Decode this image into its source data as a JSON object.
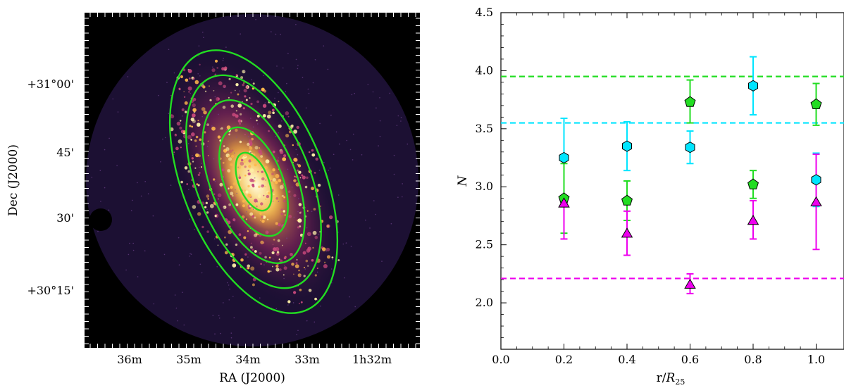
{
  "left_panel": {
    "xlabel": "RA (J2000)",
    "ylabel": "Dec (J2000)",
    "x_ticks": [
      "36m",
      "35m",
      "34m",
      "33m",
      "1h32m"
    ],
    "y_ticks": [
      "+31°00'",
      "45'",
      "30'",
      "+30°15'"
    ],
    "colors": {
      "background": "#000000",
      "disk": "#1c1033",
      "glow": "#ffe08a",
      "ellipse": "#22dd22"
    },
    "ellipse_count": 5
  },
  "chart_data": {
    "type": "scatter",
    "title": "",
    "xlabel": "r/R25",
    "ylabel": "N",
    "xlim": [
      0.0,
      1.05
    ],
    "ylim": [
      1.6,
      4.5
    ],
    "x_ticks": [
      "0.0",
      "0.2",
      "0.4",
      "0.6",
      "0.8",
      "1.0"
    ],
    "y_ticks": [
      "2.0",
      "2.5",
      "3.0",
      "3.5",
      "4.0",
      "4.5"
    ],
    "grid": false,
    "series": [
      {
        "marker": "hexagon",
        "color": "#00e5ff",
        "points": [
          {
            "x": 0.2,
            "y": 3.25,
            "lo": 2.9,
            "hi": 3.59
          },
          {
            "x": 0.4,
            "y": 3.35,
            "lo": 3.14,
            "hi": 3.56
          },
          {
            "x": 0.6,
            "y": 3.34,
            "lo": 3.2,
            "hi": 3.48
          },
          {
            "x": 0.8,
            "y": 3.87,
            "lo": 3.62,
            "hi": 4.12
          },
          {
            "x": 1.0,
            "y": 3.06,
            "lo": 2.83,
            "hi": 3.29
          }
        ],
        "reference_line": 3.55
      },
      {
        "marker": "pentagon",
        "color": "#22dd22",
        "points": [
          {
            "x": 0.2,
            "y": 2.9,
            "lo": 2.6,
            "hi": 3.2
          },
          {
            "x": 0.4,
            "y": 2.88,
            "lo": 2.71,
            "hi": 3.05
          },
          {
            "x": 0.6,
            "y": 3.73,
            "lo": 3.55,
            "hi": 3.92
          },
          {
            "x": 0.8,
            "y": 3.02,
            "lo": 2.9,
            "hi": 3.14
          },
          {
            "x": 1.0,
            "y": 3.71,
            "lo": 3.53,
            "hi": 3.89
          }
        ],
        "reference_line": 3.95
      },
      {
        "marker": "triangle",
        "color": "#ee00ee",
        "points": [
          {
            "x": 0.2,
            "y": 2.86,
            "lo": 2.55,
            "hi": 2.9
          },
          {
            "x": 0.4,
            "y": 2.6,
            "lo": 2.41,
            "hi": 2.79
          },
          {
            "x": 0.6,
            "y": 2.16,
            "lo": 2.08,
            "hi": 2.25
          },
          {
            "x": 0.8,
            "y": 2.71,
            "lo": 2.55,
            "hi": 2.88
          },
          {
            "x": 1.0,
            "y": 2.87,
            "lo": 2.46,
            "hi": 3.28
          }
        ],
        "reference_line": 2.21
      }
    ]
  }
}
